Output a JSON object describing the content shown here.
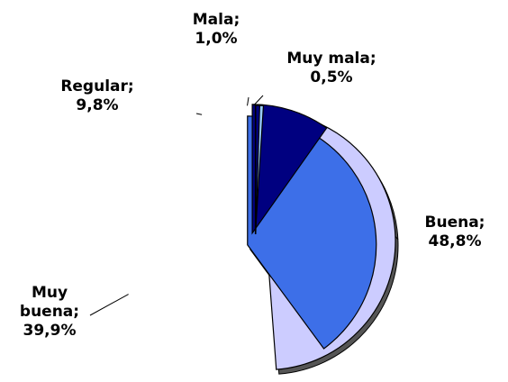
{
  "chart_data": {
    "type": "pie",
    "categories": [
      "Buena;",
      "Muy buena;",
      "Regular;",
      "Mala;",
      "Muy mala;"
    ],
    "values": [
      48.8,
      39.9,
      9.8,
      1.0,
      0.5
    ],
    "value_labels": [
      "48,8%",
      "39,9%",
      "9,8%",
      "1,0%",
      "0,5%"
    ],
    "colors": [
      "#ccccff",
      "#3d6fe8",
      "#000080",
      "#99ccff",
      "#000080"
    ]
  }
}
